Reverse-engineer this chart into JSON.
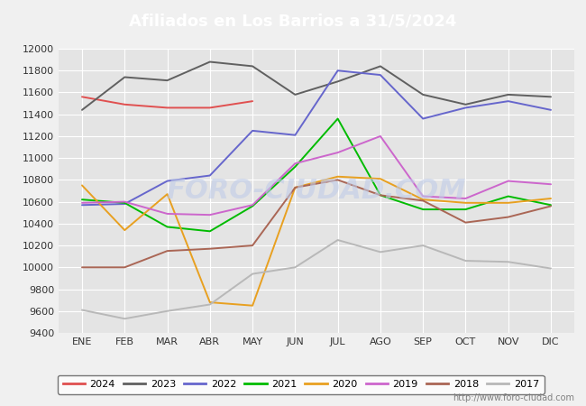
{
  "title": "Afiliados en Los Barrios a 31/5/2024",
  "title_color": "white",
  "title_bg": "#4472c4",
  "xlabel": "",
  "ylabel": "",
  "ylim": [
    9400,
    12000
  ],
  "yticks": [
    9400,
    9600,
    9800,
    10000,
    10200,
    10400,
    10600,
    10800,
    11000,
    11200,
    11400,
    11600,
    11800,
    12000
  ],
  "months": [
    "ENE",
    "FEB",
    "MAR",
    "ABR",
    "MAY",
    "JUN",
    "JUL",
    "AGO",
    "SEP",
    "OCT",
    "NOV",
    "DIC"
  ],
  "watermark": "FORO-CIUDAD.COM",
  "url": "http://www.foro-ciudad.com",
  "series": {
    "2024": {
      "color": "#e05050",
      "data": [
        11560,
        11490,
        11460,
        11460,
        11520,
        null,
        null,
        null,
        null,
        null,
        null,
        null
      ]
    },
    "2023": {
      "color": "#606060",
      "data": [
        11440,
        11740,
        11710,
        11880,
        11840,
        11580,
        11700,
        11840,
        11580,
        11490,
        11580,
        11560
      ]
    },
    "2022": {
      "color": "#6666cc",
      "data": [
        10570,
        10580,
        10790,
        10840,
        11250,
        11210,
        11800,
        11760,
        11360,
        11460,
        11520,
        11440
      ]
    },
    "2021": {
      "color": "#00bb00",
      "data": [
        10620,
        10590,
        10370,
        10330,
        10560,
        10920,
        11360,
        10660,
        10530,
        10530,
        10650,
        10570
      ]
    },
    "2020": {
      "color": "#e8a020",
      "data": [
        10750,
        10340,
        10670,
        9680,
        9650,
        10730,
        10830,
        10810,
        10620,
        10590,
        10590,
        10630
      ]
    },
    "2019": {
      "color": "#cc66cc",
      "data": [
        10590,
        10600,
        10490,
        10480,
        10570,
        10950,
        11050,
        11200,
        10650,
        10630,
        10790,
        10760
      ]
    },
    "2018": {
      "color": "#aa6655",
      "data": [
        10000,
        10000,
        10150,
        10170,
        10200,
        10730,
        10800,
        10660,
        10610,
        10410,
        10460,
        10560
      ]
    },
    "2017": {
      "color": "#b8b8b8",
      "data": [
        9610,
        9530,
        9600,
        9660,
        9940,
        10000,
        10250,
        10140,
        10200,
        10060,
        10050,
        9990
      ]
    }
  },
  "background_color": "#f0f0f0",
  "plot_bg": "#e4e4e4",
  "grid_color": "white",
  "font_color": "#333333"
}
